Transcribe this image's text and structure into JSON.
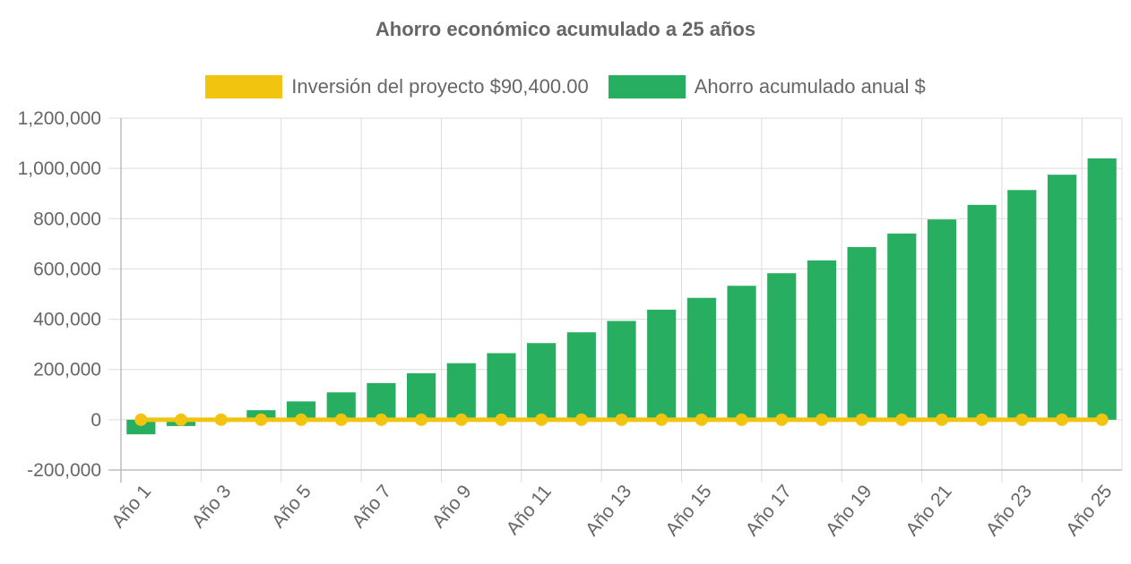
{
  "chart_data": {
    "type": "bar",
    "title": "Ahorro económico acumulado a 25 años",
    "categories": [
      "Año 1",
      "Año 2",
      "Año 3",
      "Año 4",
      "Año 5",
      "Año 6",
      "Año 7",
      "Año 8",
      "Año 9",
      "Año 10",
      "Año 11",
      "Año 12",
      "Año 13",
      "Año 14",
      "Año 15",
      "Año 16",
      "Año 17",
      "Año 18",
      "Año 19",
      "Año 20",
      "Año 21",
      "Año 22",
      "Año 23",
      "Año 24",
      "Año 25"
    ],
    "x_tick_labels": [
      "Año 1",
      "Año 3",
      "Año 5",
      "Año 7",
      "Año 9",
      "Año 11",
      "Año 13",
      "Año 15",
      "Año 17",
      "Año 19",
      "Año 21",
      "Año 23",
      "Año 25"
    ],
    "y_tick_labels": [
      "1,200,000",
      "1,000,000",
      "800,000",
      "600,000",
      "400,000",
      "200,000",
      "0",
      "-200,000"
    ],
    "ylim": [
      -200000,
      1200000
    ],
    "y_ticks": [
      1200000,
      1000000,
      800000,
      600000,
      400000,
      200000,
      0,
      -200000
    ],
    "grid": true,
    "legend_position": "top",
    "series": [
      {
        "name": "Inversión del proyecto $90,400.00",
        "type": "line",
        "color": "#f1c40f",
        "values": [
          0,
          0,
          0,
          0,
          0,
          0,
          0,
          0,
          0,
          0,
          0,
          0,
          0,
          0,
          0,
          0,
          0,
          0,
          0,
          0,
          0,
          0,
          0,
          0,
          0
        ]
      },
      {
        "name": "Ahorro acumulado anual $",
        "type": "bar",
        "color": "#27ae60",
        "values": [
          -58000,
          -25000,
          3000,
          38000,
          73000,
          109000,
          146000,
          185000,
          225000,
          265000,
          305000,
          348000,
          393000,
          438000,
          485000,
          533000,
          583000,
          634000,
          687000,
          741000,
          797000,
          855000,
          914000,
          975000,
          1040000
        ]
      }
    ]
  }
}
